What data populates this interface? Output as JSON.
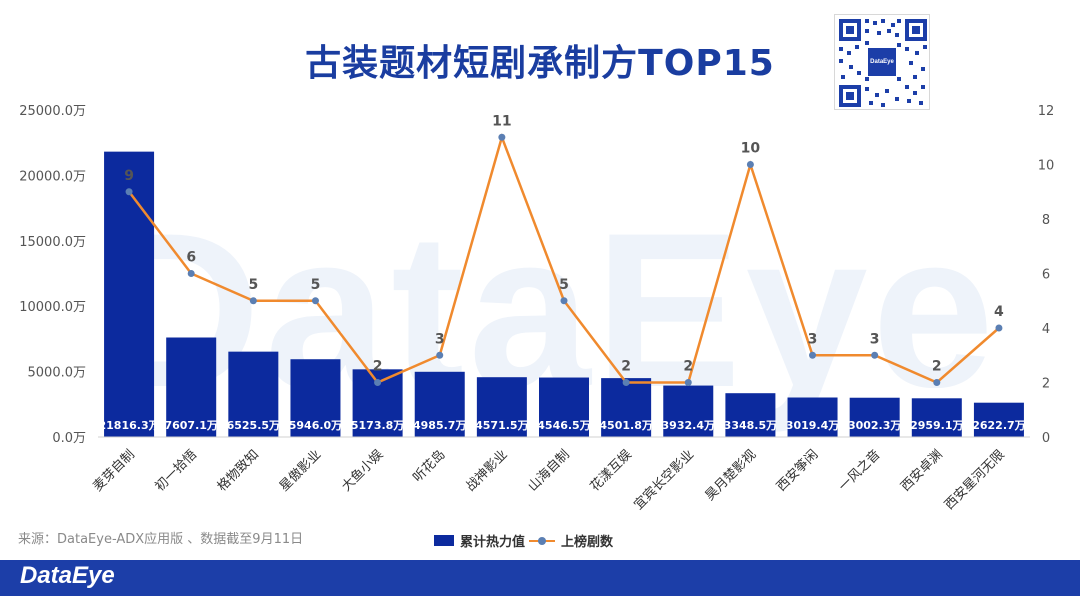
{
  "chart_data": {
    "type": "bar+line",
    "title": "古装题材短剧承制方TOP15",
    "categories": [
      "麦芽自制",
      "初一拾悟",
      "格物致知",
      "星傲影业",
      "大鱼小娱",
      "听花岛",
      "战神影业",
      "山海自制",
      "花漾互娱",
      "宜宾长空影业",
      "昊月楚影视",
      "西安筝闲",
      "一风之音",
      "西安卓渊",
      "西安星河无限"
    ],
    "series": [
      {
        "name": "累计热力值",
        "type": "bar",
        "axis": "left",
        "values": [
          21816.3,
          7607.1,
          6525.5,
          5946.0,
          5173.8,
          4985.7,
          4571.5,
          4546.5,
          4501.8,
          3932.4,
          3348.5,
          3019.4,
          3002.3,
          2959.1,
          2622.7
        ],
        "value_labels": [
          "21816.3万",
          "7607.1万",
          "6525.5万",
          "5946.0万",
          "5173.8万",
          "4985.7万",
          "4571.5万",
          "4546.5万",
          "4501.8万",
          "3932.4万",
          "3348.5万",
          "3019.4万",
          "3002.3万",
          "2959.1万",
          "2622.7万"
        ]
      },
      {
        "name": "上榜剧数",
        "type": "line",
        "axis": "right",
        "values": [
          9,
          6,
          5,
          5,
          2,
          3,
          11,
          5,
          2,
          2,
          10,
          3,
          3,
          2,
          4
        ]
      }
    ],
    "y_left": {
      "min": 0,
      "max": 25000,
      "ticks": [
        "0.0万",
        "5000.0万",
        "10000.0万",
        "15000.0万",
        "20000.0万",
        "25000.0万"
      ]
    },
    "y_right": {
      "min": 0,
      "max": 12,
      "ticks": [
        "0",
        "2",
        "4",
        "6",
        "8",
        "10",
        "12"
      ]
    },
    "legend": [
      "累计热力值",
      "上榜剧数"
    ],
    "legend_position": "bottom-center",
    "grid": false
  },
  "source_note": "来源：DataEye-ADX应用版 、数据截至9月11日",
  "brand": "DataEye",
  "watermark": "DataEye",
  "qr_logo": "DataEye",
  "colors": {
    "bar": "#0c2a9e",
    "line": "#f08a2e",
    "marker": "#5b7fb3",
    "title": "#1a3da0",
    "footer": "#1c3ea8"
  }
}
